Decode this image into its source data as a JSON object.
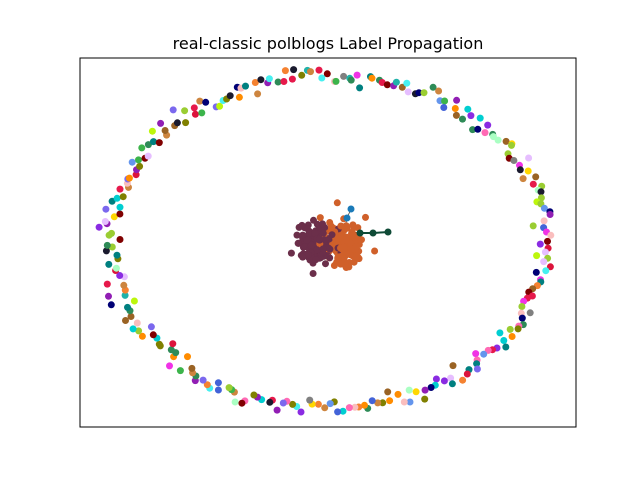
{
  "chart_data": {
    "type": "scatter",
    "title": "real-classic polblogs Label Propagation",
    "xlabel": "",
    "ylabel": "",
    "axes_ticks": false,
    "grid": false,
    "legend": "none",
    "description_colors": {
      "core_cluster_a": "#6b2f4a",
      "core_cluster_b": "#d0602a",
      "bridge": "#1a7ab8",
      "tail": "#0f4a36",
      "edge_color": "#444444"
    },
    "ring_palette": [
      "#e6194b",
      "#3cb44b",
      "#4363d8",
      "#f58231",
      "#911eb4",
      "#46f0f0",
      "#f032e6",
      "#bcf60c",
      "#fabebe",
      "#008080",
      "#e6beff",
      "#9a6324",
      "#800000",
      "#aaffc3",
      "#808000",
      "#000075",
      "#808080",
      "#1a1a2e",
      "#ffd700",
      "#2e8b57",
      "#ff69b4",
      "#7b68ee",
      "#20b2aa",
      "#cd853f",
      "#00ced1",
      "#9acd32",
      "#dc143c",
      "#6495ed",
      "#ff8c00",
      "#8a2be2"
    ],
    "ring_node_count": 270,
    "core_node_count": 300
  }
}
